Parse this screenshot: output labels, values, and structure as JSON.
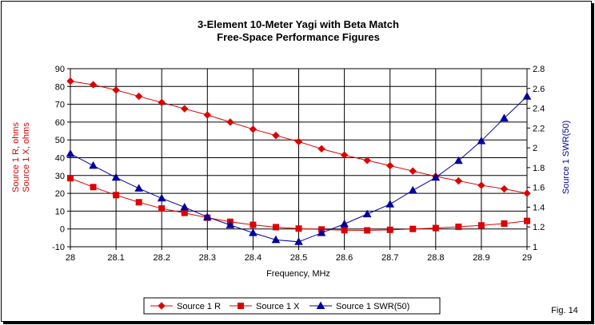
{
  "figure_label": "Fig. 14",
  "colors": {
    "red": "#dd0000",
    "blue": "#00009c"
  },
  "chart_data": {
    "type": "line",
    "title": "3-Element 10-Meter Yagi with Beta Match",
    "subtitle": "Free-Space Performance Figures",
    "xlabel": "Frequency, MHz",
    "ylabel_left": [
      "Source 1 R, ohms",
      "Source 1 X, ohms"
    ],
    "ylabel_right": "Source 1 SWR(50)",
    "xlim": [
      28,
      29
    ],
    "ylim_left": [
      -10,
      90
    ],
    "ylim_right": [
      1,
      2.8
    ],
    "xticks": [
      "28",
      "28.1",
      "28.2",
      "28.3",
      "28.4",
      "28.5",
      "28.6",
      "28.7",
      "28.8",
      "28.9",
      "29"
    ],
    "yticks_left": [
      "-10",
      "0",
      "10",
      "20",
      "30",
      "40",
      "50",
      "60",
      "70",
      "80",
      "90"
    ],
    "yticks_right": [
      "1",
      "1.2",
      "1.4",
      "1.6",
      "1.8",
      "2",
      "2.2",
      "2.4",
      "2.6",
      "2.8"
    ],
    "grid": true,
    "legend_position": "bottom",
    "x": [
      28,
      28.05,
      28.1,
      28.15,
      28.2,
      28.25,
      28.3,
      28.35,
      28.4,
      28.45,
      28.5,
      28.55,
      28.6,
      28.65,
      28.7,
      28.75,
      28.8,
      28.85,
      28.9,
      28.95,
      29
    ],
    "series": [
      {
        "name": "Source 1 R",
        "axis": "left",
        "marker": "diamond",
        "color": "#dd0000",
        "values": [
          83,
          81,
          78,
          74.5,
          71,
          67.5,
          64,
          60,
          56,
          52.5,
          49,
          45,
          41.5,
          38.5,
          35.5,
          32.5,
          29.5,
          27,
          24.5,
          22.5,
          20
        ]
      },
      {
        "name": "Source 1 X",
        "axis": "left",
        "marker": "square",
        "color": "#dd0000",
        "values": [
          28.5,
          23.5,
          19,
          15,
          11.5,
          9,
          6.3,
          4,
          2.3,
          1,
          0.2,
          -0.3,
          -0.7,
          -0.8,
          -0.5,
          0,
          0.5,
          1.2,
          2,
          3,
          4.5
        ]
      },
      {
        "name": "Source 1 SWR(50)",
        "axis": "right",
        "marker": "triangle",
        "color": "#00009c",
        "values": [
          1.94,
          1.82,
          1.7,
          1.59,
          1.49,
          1.4,
          1.3,
          1.22,
          1.14,
          1.07,
          1.05,
          1.14,
          1.23,
          1.33,
          1.43,
          1.57,
          1.7,
          1.87,
          2.07,
          2.3,
          2.52
        ]
      }
    ]
  }
}
